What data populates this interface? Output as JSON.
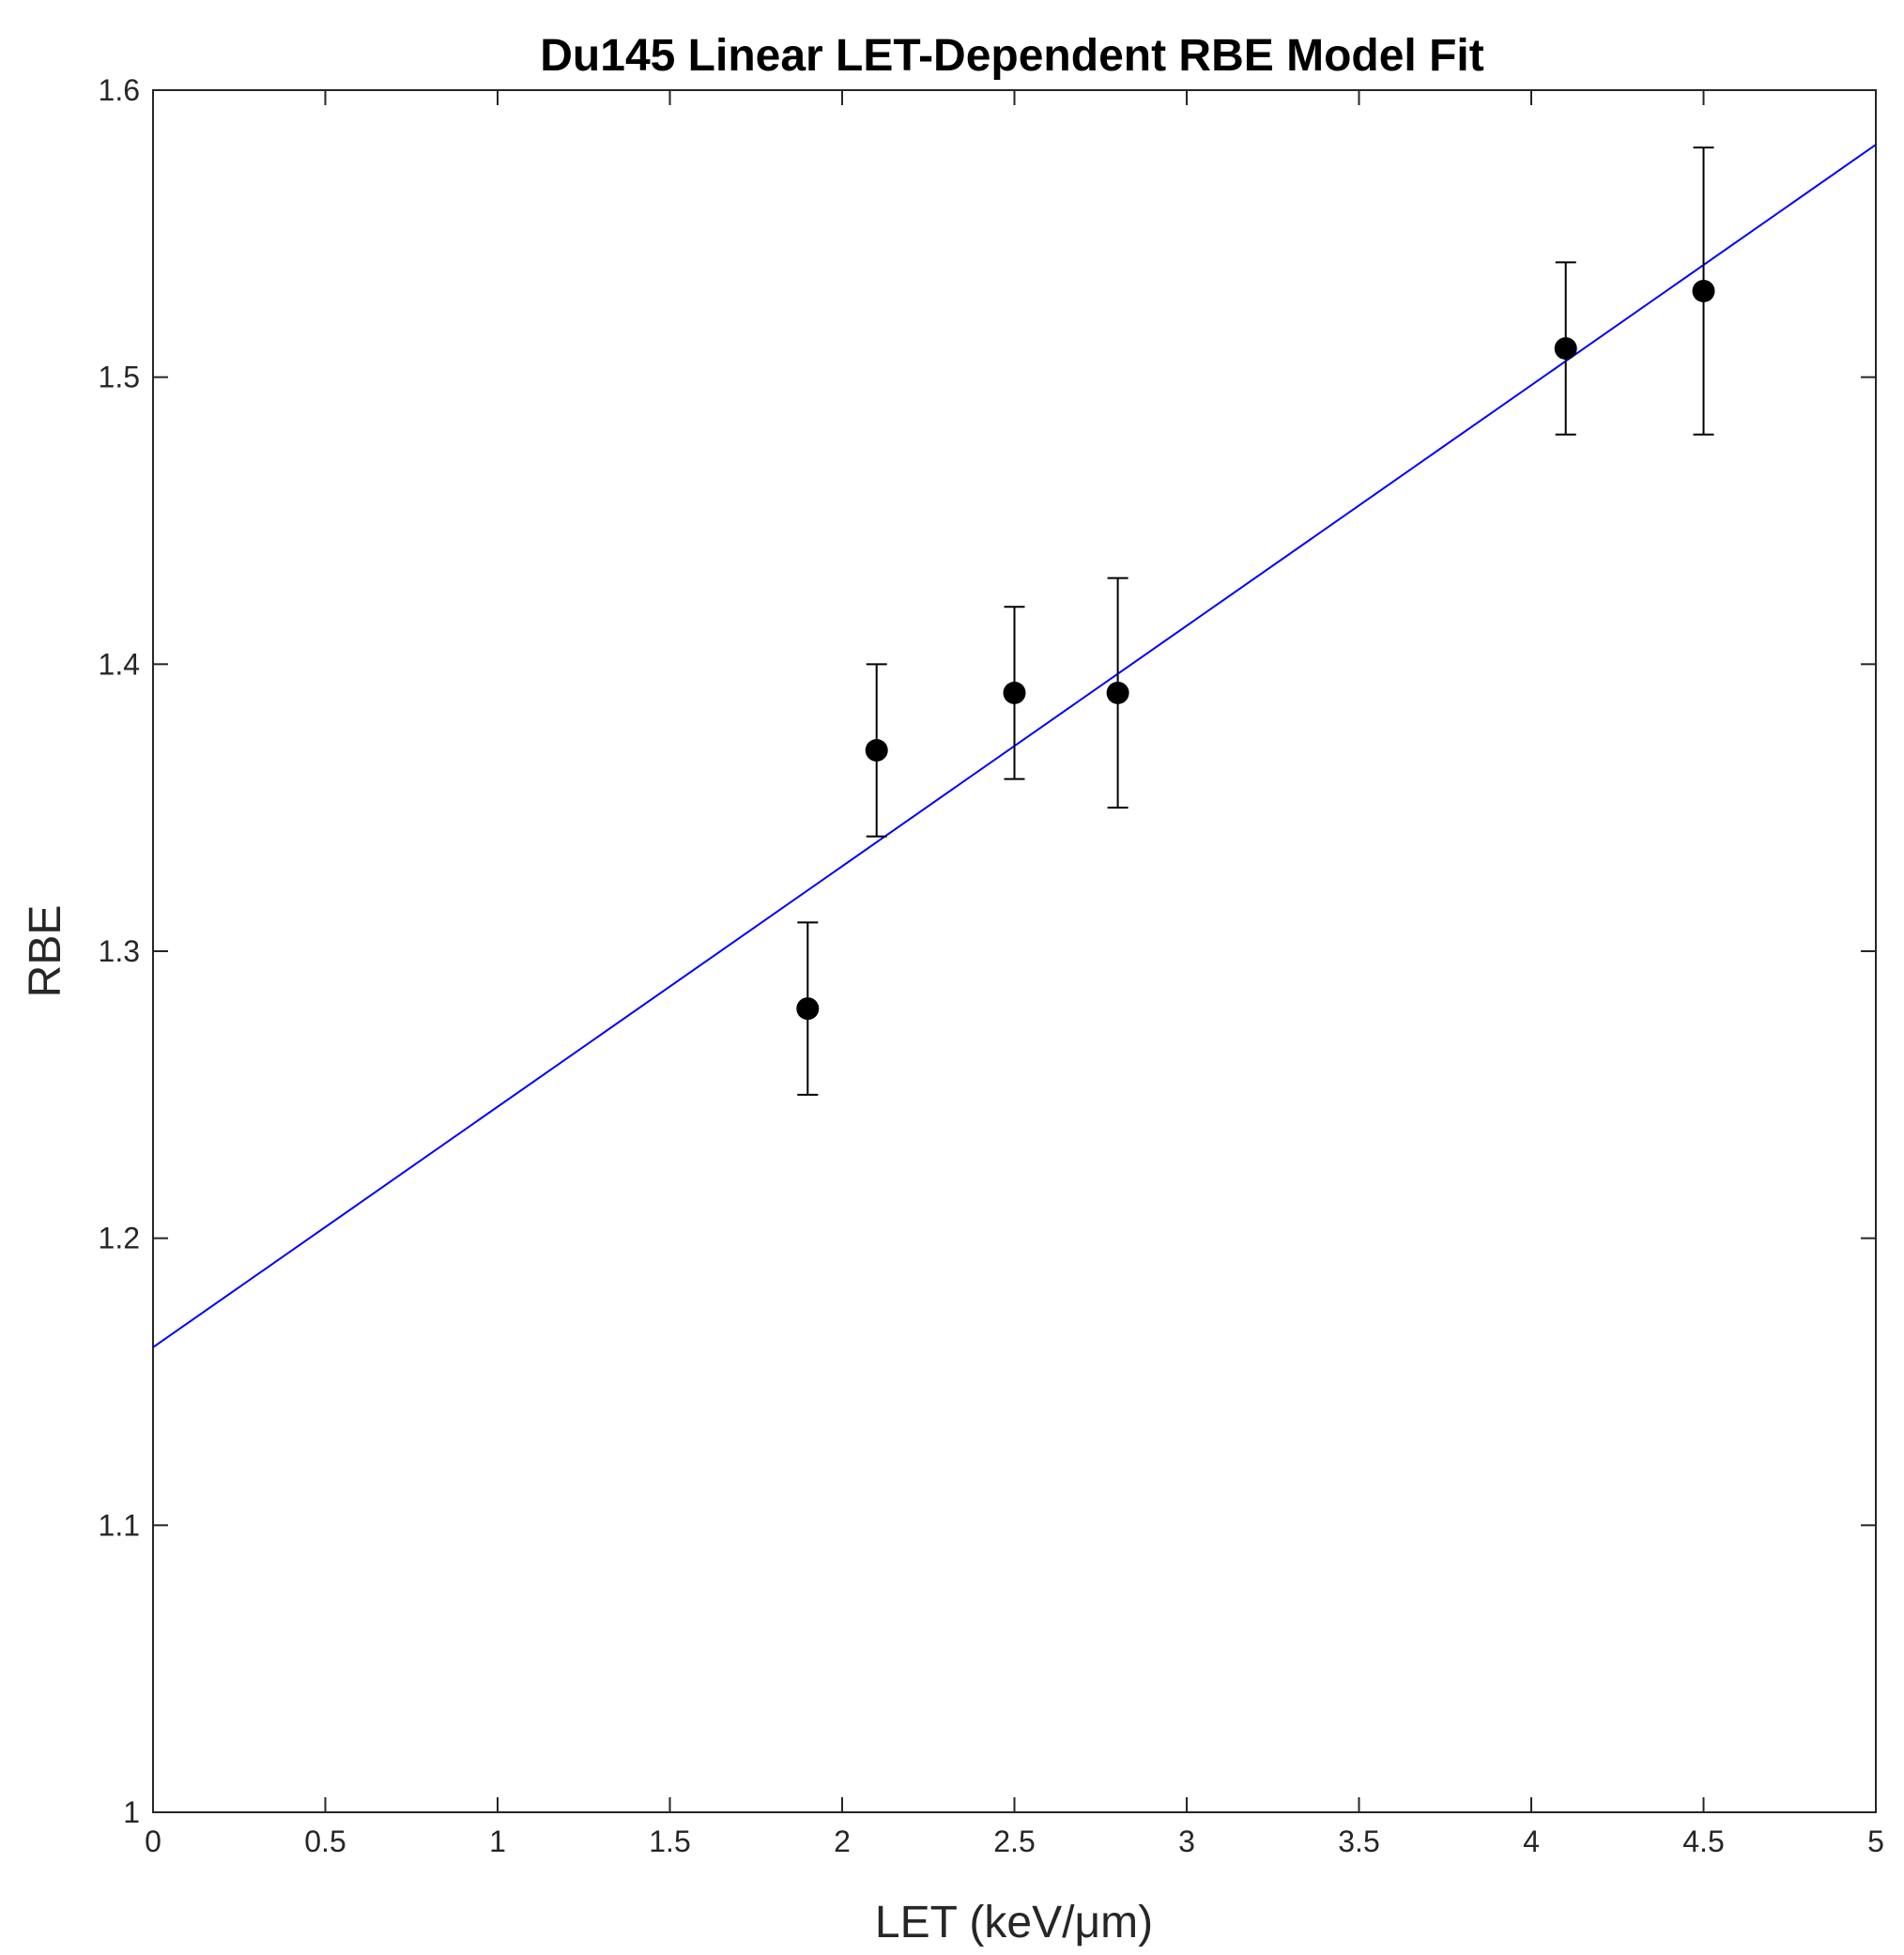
{
  "chart_data": {
    "type": "scatter",
    "title": "Du145 Linear LET-Dependent RBE Model Fit",
    "xlabel": "LET (keV/μm)",
    "ylabel": "RBE",
    "xlim": [
      0,
      5
    ],
    "ylim": [
      1,
      1.6
    ],
    "x_ticks": [
      "0",
      "0.5",
      "1",
      "1.5",
      "2",
      "2.5",
      "3",
      "3.5",
      "4",
      "4.5",
      "5"
    ],
    "y_ticks": [
      "1",
      "1.1",
      "1.2",
      "1.3",
      "1.4",
      "1.5",
      "1.6"
    ],
    "grid": false,
    "series": [
      {
        "type": "scatter-errorbar",
        "points": [
          {
            "x": 1.9,
            "y": 1.28,
            "lower": 1.25,
            "upper": 1.31
          },
          {
            "x": 2.1,
            "y": 1.37,
            "lower": 1.34,
            "upper": 1.4
          },
          {
            "x": 2.5,
            "y": 1.39,
            "lower": 1.36,
            "upper": 1.42
          },
          {
            "x": 2.8,
            "y": 1.39,
            "lower": 1.35,
            "upper": 1.43
          },
          {
            "x": 4.1,
            "y": 1.51,
            "lower": 1.48,
            "upper": 1.54
          },
          {
            "x": 4.5,
            "y": 1.53,
            "lower": 1.48,
            "upper": 1.58
          }
        ],
        "color": "#000000"
      },
      {
        "type": "line",
        "x": [
          0,
          5
        ],
        "y": [
          1.162,
          1.581
        ],
        "color": "#0000ff"
      }
    ]
  }
}
